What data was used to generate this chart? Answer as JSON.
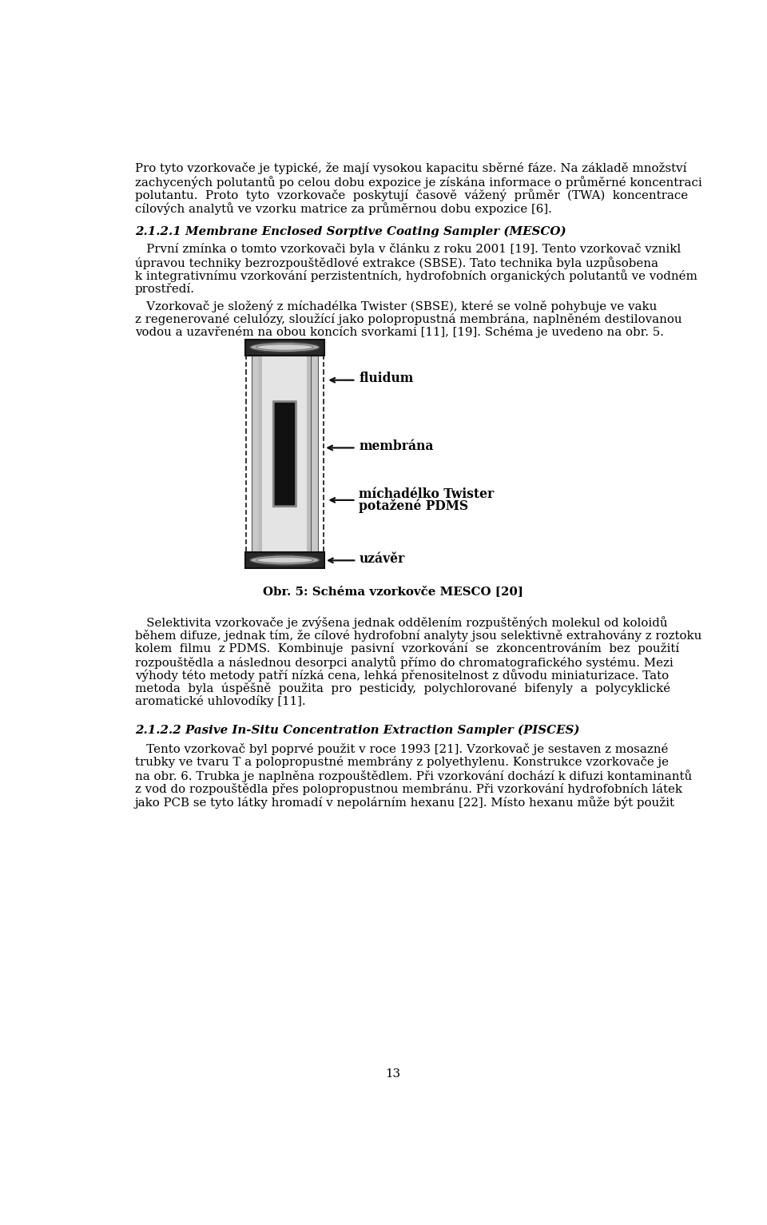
{
  "page_width": 9.6,
  "page_height": 15.33,
  "bg_color": "#ffffff",
  "ml": 0.63,
  "mr": 0.63,
  "mt": 0.25,
  "text_color": "#000000",
  "fs": 10.8,
  "lh": 0.215,
  "section_title": "2.1.2.1 Membrane Enclosed Sorptive Coating Sampler (MESCO)",
  "caption": "Obr. 5: Schéma vzorkovče MESCO [20]",
  "para5": "2.1.2.2 Pasive In-Situ Concentration Extraction Sampler (PISCES)",
  "page_num": "13",
  "lines1": [
    "Pro tyto vzorkovače je typické, že mají vysokou kapacitu sběrné fáze. Na základě množství",
    "zachycených polutantů po celou dobu expozice je získána informace o průměrné koncentraci",
    "polutantu.  Proto  tyto  vzorkovače  poskytují  časově  vážený  průměr  (TWA)  koncentrace",
    "cílových analytů ve vzorku matrice za průměrnou dobu expozice [6]."
  ],
  "lines2": [
    "   První zmínka o tomto vzorkovači byla v článku z roku 2001 [19]. Tento vzorkovač vznikl",
    "úpravou techniky bezrozpouštědlové extrakce (SBSE). Tato technika byla uzpůsobena",
    "k integrativnímu vzorkování perzistentních, hydrofobních organických polutantů ve vodném",
    "prostředí."
  ],
  "lines3": [
    "   Vzorkovač je složený z míchadélka Twister (SBSE), které se volně pohybuje ve vaku",
    "z regenerované celulózy, sloužící jako polopropustná membrána, naplněném destilovanou",
    "vodou a uzavřeném na obou koncích svorkami [11], [19]. Schéma je uvedeno na obr. 5."
  ],
  "lines4": [
    "   Selektivita vzorkovače je zvýšena jednak oddělením rozpuštěných molekul od koloidů",
    "během difuze, jednak tím, že cílové hydrofobní analyty jsou selektivně extrahovány z roztoku",
    "kolem  filmu  z PDMS.  Kombinuje  pasivní  vzorkování  se  zkoncentrováním  bez  použití",
    "rozpouštědla a následnou desorpci analytů přímo do chromatografického systému. Mezi",
    "výhody této metody patří nízká cena, lehká přenositelnost z důvodu miniaturizace. Tato",
    "metoda  byla  úspěšně  použita  pro  pesticidy,  polychlorované  bifenyly  a  polycyklické",
    "aromatické uhlovodíky [11]."
  ],
  "lines6": [
    "   Tento vzorkovač byl poprvé použit v roce 1993 [21]. Vzorkovač je sestaven z mosazné",
    "trubky ve tvaru T a polopropustné membrány z polyethylenu. Konstrukce vzorkovače je",
    "na obr. 6. Trubka je naplněna rozpouštědlem. Při vzorkování dochází k difuzi kontaminantů",
    "z vod do rozpouštědla přes polopropustnou membránu. Při vzorkování hydrofobních látek",
    "jako PCB se tyto látky hromadí v nepolárním hexanu [22]. Místo hexanu může být použit"
  ]
}
